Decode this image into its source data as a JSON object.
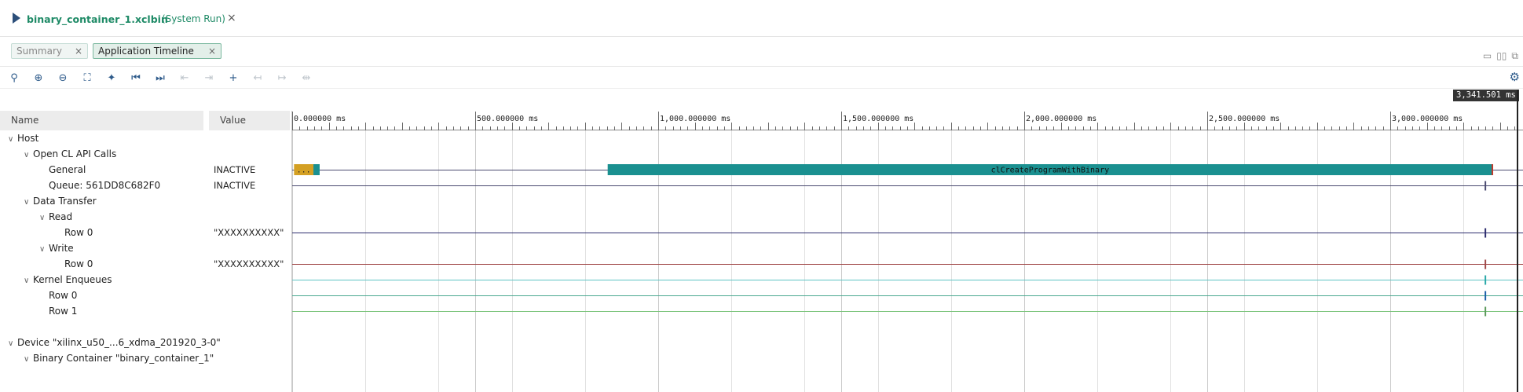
{
  "title_bar": {
    "file": "binary_container_1.xclbin",
    "mode": "(System Run)",
    "close": "×"
  },
  "tabs": [
    {
      "label": "Summary",
      "active": false
    },
    {
      "label": "Application Timeline",
      "active": true
    }
  ],
  "tab_close": "×",
  "toolbar": {
    "icons": [
      {
        "name": "search-icon",
        "glyph": "⚲",
        "enabled": true
      },
      {
        "name": "zoom-in-icon",
        "glyph": "⊕",
        "enabled": true
      },
      {
        "name": "zoom-out-icon",
        "glyph": "⊖",
        "enabled": true
      },
      {
        "name": "zoom-fit-icon",
        "glyph": "⛶",
        "enabled": true
      },
      {
        "name": "add-marker-icon",
        "glyph": "✦",
        "enabled": true
      },
      {
        "name": "go-to-start-icon",
        "glyph": "⏮",
        "enabled": true
      },
      {
        "name": "go-to-end-icon",
        "glyph": "⏭",
        "enabled": true
      },
      {
        "name": "previous-event-icon",
        "glyph": "⇤",
        "enabled": false
      },
      {
        "name": "next-event-icon",
        "glyph": "⇥",
        "enabled": false
      },
      {
        "name": "add-cursor-icon",
        "glyph": "+",
        "enabled": true
      },
      {
        "name": "previous-transition-icon",
        "glyph": "↤",
        "enabled": false
      },
      {
        "name": "next-transition-icon",
        "glyph": "↦",
        "enabled": false
      },
      {
        "name": "swap-cursors-icon",
        "glyph": "⇹",
        "enabled": false
      }
    ]
  },
  "time_readout": "3,341.501 ms",
  "columns": {
    "name": "Name",
    "value": "Value"
  },
  "timeline": {
    "max_ms": 3341.501,
    "major_ticks": [
      {
        "ms": 0,
        "label": "0.000000 ms"
      },
      {
        "ms": 500,
        "label": "500.000000 ms"
      },
      {
        "ms": 1000,
        "label": "1,000.000000 ms"
      },
      {
        "ms": 1500,
        "label": "1,500.000000 ms"
      },
      {
        "ms": 2000,
        "label": "2,000.000000 ms"
      },
      {
        "ms": 2500,
        "label": "2,500.000000 ms"
      },
      {
        "ms": 3000,
        "label": "3,000.000000 ms"
      }
    ],
    "events": [
      {
        "row": 2,
        "start_ms": 5,
        "end_ms": 58,
        "color": "#d4a023",
        "label": "..."
      },
      {
        "row": 2,
        "start_ms": 58,
        "end_ms": 75,
        "color": "#1a9090",
        "label": ""
      },
      {
        "row": 2,
        "start_ms": 862,
        "end_ms": 3279,
        "color": "#1a9090",
        "label": "clCreateProgramWithBinary"
      }
    ]
  },
  "tree": [
    {
      "label": "Host",
      "value": "",
      "level": 0,
      "expand": "open",
      "line": ""
    },
    {
      "label": "Open CL API Calls",
      "value": "",
      "level": 1,
      "expand": "open",
      "line": ""
    },
    {
      "label": "General",
      "value": "INACTIVE",
      "level": 2,
      "expand": "",
      "line": "#4a4a70",
      "marker": "#c0392b"
    },
    {
      "label": "Queue: 561DD8C682F0",
      "value": "INACTIVE",
      "level": 2,
      "expand": "",
      "line": "#4a4a70",
      "marker": "#4a4a70"
    },
    {
      "label": "Data Transfer",
      "value": "",
      "level": 1,
      "expand": "open",
      "line": ""
    },
    {
      "label": "Read",
      "value": "",
      "level": 2,
      "expand": "open",
      "line": ""
    },
    {
      "label": "Row 0",
      "value": "\"XXXXXXXXXX\"",
      "level": 3,
      "expand": "",
      "line": "#2d2d6e",
      "marker": "#2d2d6e"
    },
    {
      "label": "Write",
      "value": "",
      "level": 2,
      "expand": "open",
      "line": ""
    },
    {
      "label": "Row 0",
      "value": "\"XXXXXXXXXX\"",
      "level": 3,
      "expand": "",
      "line": "#a04848",
      "marker": "#a04848"
    },
    {
      "label": "Kernel Enqueues",
      "value": "",
      "level": 1,
      "expand": "open",
      "line": "#5fc4c4",
      "marker": "#2aa8a8"
    },
    {
      "label": "Row 0",
      "value": "",
      "level": 2,
      "expand": "",
      "line": "#4aa890",
      "marker": "#1a5fa8"
    },
    {
      "label": "Row 1",
      "value": "",
      "level": 2,
      "expand": "",
      "line": "#7cc47c",
      "marker": "#5a9a5a"
    },
    {
      "label": "",
      "value": "",
      "level": 0,
      "expand": "",
      "line": ""
    },
    {
      "label": "Device \"xilinx_u50_...6_xdma_201920_3-0\"",
      "value": "",
      "level": 0,
      "expand": "open",
      "line": ""
    },
    {
      "label": "Binary Container \"binary_container_1\"",
      "value": "",
      "level": 1,
      "expand": "open",
      "line": ""
    }
  ],
  "window_icons": [
    "▭",
    "▯▯",
    "⧉"
  ]
}
